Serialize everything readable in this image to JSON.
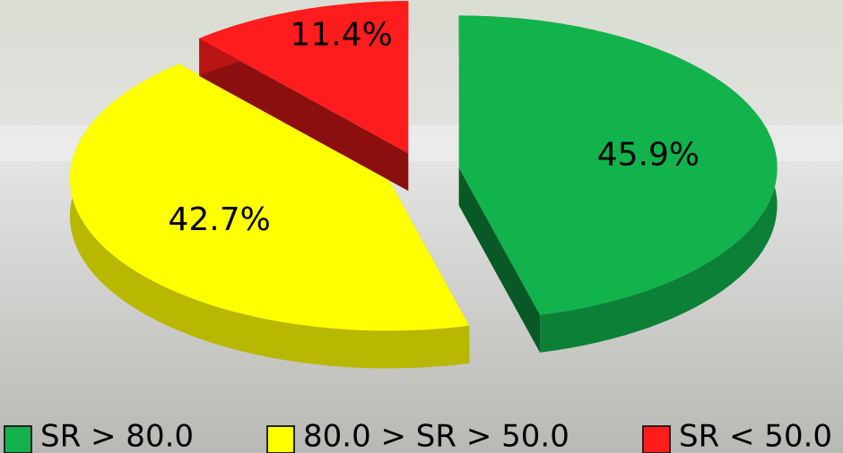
{
  "chart_data": {
    "type": "pie",
    "view": "3d",
    "exploded": true,
    "categories": [
      "SR > 80.0",
      "80.0 > SR > 50.0",
      "SR < 50.0"
    ],
    "values": [
      45.9,
      42.7,
      11.4
    ],
    "value_labels": [
      "45.9%",
      "42.7%",
      "11.4%"
    ],
    "colors": [
      "#12b24c",
      "#ffff00",
      "#ff1c1c"
    ],
    "legend": "bottom"
  }
}
